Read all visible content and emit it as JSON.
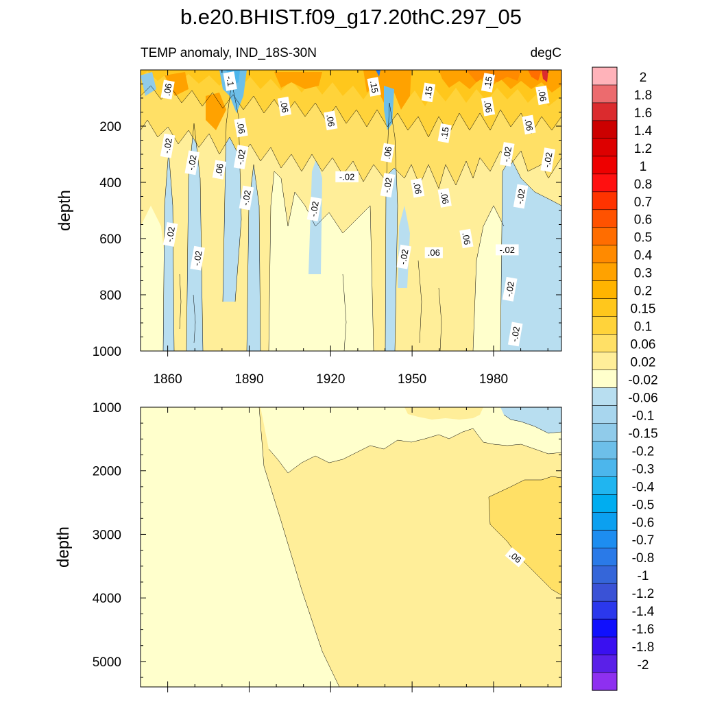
{
  "figure": {
    "title": "b.e20.BHIST.f09_g17.20thC.297_05",
    "subtitle_left": "TEMP anomaly, IND_18S-30N",
    "subtitle_right": "degC"
  },
  "chart_data": [
    {
      "type": "heatmap",
      "panel": "upper",
      "xlabel": "",
      "ylabel": "depth",
      "xlim": [
        1850,
        2005
      ],
      "ylim": [
        0,
        1000
      ],
      "y_inverted": true,
      "x_ticks": [
        1860,
        1890,
        1920,
        1950,
        1980
      ],
      "x_tick_labels": [
        "1860",
        "1890",
        "1920",
        "1950",
        "1980"
      ],
      "y_ticks": [
        200,
        400,
        600,
        800,
        1000
      ],
      "y_tick_labels": [
        "200",
        "400",
        "600",
        "800",
        "1000"
      ],
      "contour_labels": [
        {
          "text": ".06",
          "x": 1860,
          "y": 70,
          "rot": -80
        },
        {
          "text": "-.1",
          "x": 1883,
          "y": 40,
          "rot": 80
        },
        {
          "text": ".06",
          "x": 1903,
          "y": 130,
          "rot": 80
        },
        {
          "text": ".06",
          "x": 1920,
          "y": 180,
          "rot": 80
        },
        {
          "text": ".15",
          "x": 1936,
          "y": 60,
          "rot": 80
        },
        {
          "text": ".15",
          "x": 1956,
          "y": 80,
          "rot": -80
        },
        {
          "text": ".15",
          "x": 1978,
          "y": 45,
          "rot": -80
        },
        {
          "text": ".06",
          "x": 1978,
          "y": 130,
          "rot": 80
        },
        {
          "text": ".06",
          "x": 1998,
          "y": 90,
          "rot": 80
        },
        {
          "text": ".06",
          "x": 1887,
          "y": 205,
          "rot": 80
        },
        {
          "text": "-.02",
          "x": 1860,
          "y": 270,
          "rot": -80
        },
        {
          "text": "-.02",
          "x": 1869,
          "y": 330,
          "rot": -80
        },
        {
          "text": ".06",
          "x": 1879,
          "y": 355,
          "rot": -80
        },
        {
          "text": "-.02",
          "x": 1887,
          "y": 310,
          "rot": -80
        },
        {
          "text": ".15",
          "x": 1962,
          "y": 225,
          "rot": -80
        },
        {
          "text": ".06",
          "x": 1941,
          "y": 295,
          "rot": -80
        },
        {
          "text": "-.02",
          "x": 1985,
          "y": 300,
          "rot": -80
        },
        {
          "text": ".06",
          "x": 1993,
          "y": 195,
          "rot": 80
        },
        {
          "text": "-.02",
          "x": 2000,
          "y": 320,
          "rot": -80
        },
        {
          "text": "-.02",
          "x": 1926,
          "y": 380,
          "rot": 0
        },
        {
          "text": "-.02",
          "x": 1941,
          "y": 410,
          "rot": -80
        },
        {
          "text": ".06",
          "x": 1952,
          "y": 420,
          "rot": 80
        },
        {
          "text": ".06",
          "x": 1962,
          "y": 455,
          "rot": 80
        },
        {
          "text": "-.02",
          "x": 1990,
          "y": 450,
          "rot": -80
        },
        {
          "text": "-.02",
          "x": 1889,
          "y": 455,
          "rot": -80
        },
        {
          "text": "-.02",
          "x": 1914,
          "y": 495,
          "rot": -80
        },
        {
          "text": "-.02",
          "x": 1861,
          "y": 585,
          "rot": -80
        },
        {
          "text": "-.02",
          "x": 1871,
          "y": 670,
          "rot": -80
        },
        {
          "text": "-.02",
          "x": 1947,
          "y": 665,
          "rot": -80
        },
        {
          "text": ".06",
          "x": 1958,
          "y": 650,
          "rot": 0
        },
        {
          "text": ".06",
          "x": 1970,
          "y": 600,
          "rot": 80
        },
        {
          "text": "-.02",
          "x": 1985,
          "y": 640,
          "rot": 0
        },
        {
          "text": "-.02",
          "x": 1986,
          "y": 780,
          "rot": -80
        },
        {
          "text": "-.02",
          "x": 1988,
          "y": 940,
          "rot": -80
        }
      ]
    },
    {
      "type": "heatmap",
      "panel": "lower",
      "xlabel": "",
      "ylabel": "depth",
      "xlim": [
        1850,
        2005
      ],
      "ylim": [
        1000,
        5400
      ],
      "y_inverted": true,
      "x_ticks": [
        1860,
        1890,
        1920,
        1950,
        1980
      ],
      "y_ticks": [
        1000,
        2000,
        3000,
        4000,
        5000
      ],
      "y_tick_labels": [
        "1000",
        "2000",
        "3000",
        "4000",
        "5000"
      ],
      "contour_labels": [
        {
          "text": ".06",
          "x": 1988,
          "y": 3360,
          "rot": 40
        }
      ]
    }
  ],
  "colorbar": {
    "labels": [
      "2",
      "1.8",
      "1.6",
      "1.4",
      "1.2",
      "1",
      "0.8",
      "0.7",
      "0.6",
      "0.5",
      "0.4",
      "0.3",
      "0.2",
      "0.15",
      "0.1",
      "0.06",
      "0.02",
      "-0.02",
      "-0.06",
      "-0.1",
      "-0.15",
      "-0.2",
      "-0.3",
      "-0.4",
      "-0.5",
      "-0.6",
      "-0.7",
      "-0.8",
      "-1",
      "-1.2",
      "-1.4",
      "-1.6",
      "-1.8",
      "-2"
    ],
    "colors": [
      "#ffb3ba",
      "#ec6b6e",
      "#db2b2e",
      "#cc0000",
      "#dd0000",
      "#ee0000",
      "#ff1010",
      "#ff3300",
      "#ff5200",
      "#ff6d00",
      "#ff8a00",
      "#ffa200",
      "#ffb400",
      "#ffc71c",
      "#ffd33a",
      "#ffe066",
      "#ffee99",
      "#ffffcc",
      "#b8def0",
      "#a8d6ee",
      "#90cbea",
      "#6dbfe9",
      "#4cb6ec",
      "#20b5f0",
      "#00adf0",
      "#0ca0f0",
      "#1d8df0",
      "#2a7ae8",
      "#3566d9",
      "#3a52d6",
      "#2b38ec",
      "#1010fd",
      "#3a10f0",
      "#5a20e8",
      "#8e30f0"
    ]
  }
}
